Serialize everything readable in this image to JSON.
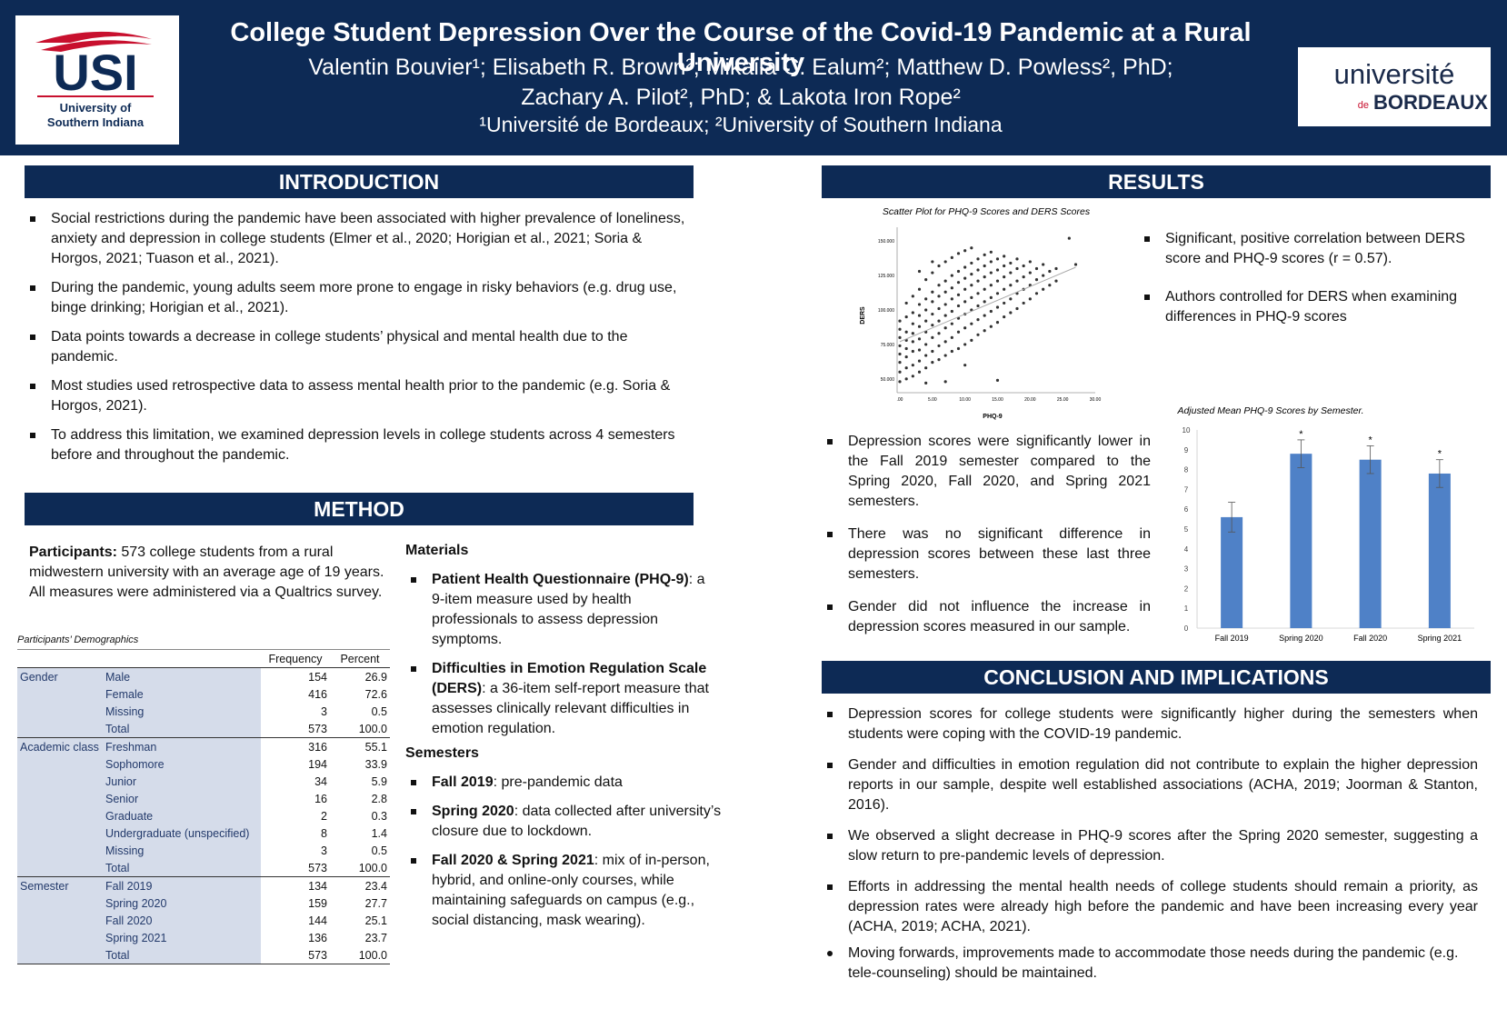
{
  "header": {
    "title": "College Student Depression Over the Course of the Covid-19 Pandemic at a Rural University",
    "authors_line1": "Valentin Bouvier¹; Elisabeth R. Brown²; Mikaila C. Ealum²; Matthew D. Powless², PhD;",
    "authors_line2": "Zachary A. Pilot², PhD; & Lakota Iron Rope²",
    "affiliations": "¹Université de Bordeaux; ²University of Southern Indiana",
    "usi_logo_text": "USI",
    "usi_logo_sub1": "University of",
    "usi_logo_sub2": "Southern Indiana",
    "ub_logo_line1": "université",
    "ub_logo_de": "de",
    "ub_logo_line2": "BORDEAUX"
  },
  "introduction": {
    "heading": "INTRODUCTION",
    "bullets": [
      "Social restrictions during the pandemic have been associated with higher prevalence of loneliness, anxiety and depression in college students (Elmer et al., 2020; Horigian et al., 2021; Soria & Horgos, 2021; Tuason et al., 2021).",
      "During the pandemic, young adults seem more prone to engage in risky behaviors (e.g. drug use, binge drinking; Horigian et al., 2021).",
      "Data points towards a decrease in college students’ physical and mental health due to the pandemic.",
      "Most studies used retrospective data to assess mental health prior to the pandemic (e.g. Soria & Horgos, 2021).",
      "To address this limitation, we examined depression levels in college students across 4 semesters before and throughout the pandemic."
    ]
  },
  "method": {
    "heading": "METHOD",
    "participants_label": "Participants:",
    "participants_text": " 573 college students from a rural midwestern university with an average age of 19 years. All measures were administered via a Qualtrics survey.",
    "table_caption": "Participants’ Demographics",
    "table_headers": [
      "",
      "",
      "Frequency",
      "Percent"
    ],
    "table_groups": [
      {
        "group": "Gender",
        "rows": [
          [
            "Male",
            "154",
            "26.9"
          ],
          [
            "Female",
            "416",
            "72.6"
          ],
          [
            "Missing",
            "3",
            "0.5"
          ],
          [
            "Total",
            "573",
            "100.0"
          ]
        ]
      },
      {
        "group": "Academic class",
        "rows": [
          [
            "Freshman",
            "316",
            "55.1"
          ],
          [
            "Sophomore",
            "194",
            "33.9"
          ],
          [
            "Junior",
            "34",
            "5.9"
          ],
          [
            "Senior",
            "16",
            "2.8"
          ],
          [
            "Graduate",
            "2",
            "0.3"
          ],
          [
            "Undergraduate (unspecified)",
            "8",
            "1.4"
          ],
          [
            "Missing",
            "3",
            "0.5"
          ],
          [
            "Total",
            "573",
            "100.0"
          ]
        ]
      },
      {
        "group": "Semester",
        "rows": [
          [
            "Fall 2019",
            "134",
            "23.4"
          ],
          [
            "Spring 2020",
            "159",
            "27.7"
          ],
          [
            "Fall 2020",
            "144",
            "25.1"
          ],
          [
            "Spring 2021",
            "136",
            "23.7"
          ],
          [
            "Total",
            "573",
            "100.0"
          ]
        ]
      }
    ],
    "materials_heading": "Materials",
    "materials": [
      {
        "bold": "Patient Health Questionnaire (PHQ-9)",
        "text": ": a 9-item measure used by health professionals to assess depression symptoms."
      },
      {
        "bold": "Difficulties in Emotion Regulation Scale (DERS)",
        "text": ": a 36-item self-report measure that assesses clinically relevant difficulties in emotion regulation."
      }
    ],
    "semesters_heading": "Semesters",
    "semesters": [
      {
        "bold": "Fall 2019",
        "text": ": pre-pandemic data"
      },
      {
        "bold": "Spring 2020",
        "text": ": data collected after university’s closure due to lockdown."
      },
      {
        "bold": "Fall 2020 & Spring 2021",
        "text": ": mix of in-person, hybrid, and online-only courses, while maintaining safeguards on campus (e.g., social distancing, mask wearing)."
      }
    ]
  },
  "results": {
    "heading": "RESULTS",
    "scatter_bullets": [
      "Significant, positive correlation between DERS score and PHQ-9 scores (r = 0.57).",
      "Authors controlled for DERS when examining differences in PHQ-9 scores"
    ],
    "bar_bullets": [
      "Depression scores were significantly lower in the Fall 2019 semester compared to the Spring 2020, Fall 2020, and Spring 2021 semesters.",
      "There was no significant difference in depression scores between these last three semesters.",
      "Gender did not influence the increase in depression scores measured in our sample."
    ]
  },
  "conclusion": {
    "heading": "CONCLUSION AND IMPLICATIONS",
    "bullets": [
      "Depression scores for college students were significantly higher during the semesters when students were coping with the COVID-19 pandemic.",
      "Gender and difficulties in emotion regulation did not contribute to explain the higher depression reports in our sample, despite well established associations (ACHA, 2019; Joorman & Stanton, 2016).",
      "We observed a slight decrease in PHQ-9 scores after the Spring 2020 semester, suggesting a slow return to pre-pandemic levels of depression.",
      "Efforts in addressing the mental health needs of college students should remain a priority, as depression rates were already high before the pandemic and have been increasing every year (ACHA, 2019; ACHA, 2021).",
      "Moving forwards, improvements made to accommodate those needs during the pandemic (e.g. tele-counseling) should be maintained."
    ]
  },
  "colors": {
    "navy": "#0d2a55",
    "bar": "#4f81c7",
    "usi_red": "#c8102e"
  },
  "chart_data": [
    {
      "type": "scatter",
      "title": "Scatter Plot for PHQ-9 Scores and DERS Scores",
      "xlabel": "PHQ-9",
      "ylabel": "DERS",
      "x_ticks": [
        ".00",
        "5.00",
        "10.00",
        "15.00",
        "20.00",
        "25.00",
        "30.00"
      ],
      "y_ticks": [
        "50.000",
        "75.000",
        "100.000",
        "125.000",
        "150.000"
      ],
      "xlim": [
        0,
        30
      ],
      "ylim": [
        40,
        160
      ],
      "fit_line": [
        [
          0,
          77
        ],
        [
          27,
          131
        ]
      ],
      "points": [
        [
          0,
          48
        ],
        [
          0,
          55
        ],
        [
          0,
          62
        ],
        [
          0,
          68
        ],
        [
          0,
          74
        ],
        [
          0,
          80
        ],
        [
          0,
          86
        ],
        [
          0,
          92
        ],
        [
          1,
          50
        ],
        [
          1,
          58
        ],
        [
          1,
          66
        ],
        [
          1,
          72
        ],
        [
          1,
          78
        ],
        [
          1,
          84
        ],
        [
          1,
          95
        ],
        [
          1,
          105
        ],
        [
          2,
          52
        ],
        [
          2,
          60
        ],
        [
          2,
          70
        ],
        [
          2,
          77
        ],
        [
          2,
          83
        ],
        [
          2,
          90
        ],
        [
          2,
          98
        ],
        [
          2,
          110
        ],
        [
          3,
          55
        ],
        [
          3,
          63
        ],
        [
          3,
          71
        ],
        [
          3,
          79
        ],
        [
          3,
          88
        ],
        [
          3,
          96
        ],
        [
          3,
          104
        ],
        [
          3,
          115
        ],
        [
          4,
          58
        ],
        [
          4,
          67
        ],
        [
          4,
          75
        ],
        [
          4,
          84
        ],
        [
          4,
          92
        ],
        [
          4,
          100
        ],
        [
          4,
          108
        ],
        [
          4,
          122
        ],
        [
          5,
          62
        ],
        [
          5,
          70
        ],
        [
          5,
          80
        ],
        [
          5,
          89
        ],
        [
          5,
          97
        ],
        [
          5,
          106
        ],
        [
          5,
          113
        ],
        [
          5,
          127
        ],
        [
          6,
          64
        ],
        [
          6,
          74
        ],
        [
          6,
          83
        ],
        [
          6,
          92
        ],
        [
          6,
          101
        ],
        [
          6,
          110
        ],
        [
          6,
          118
        ],
        [
          6,
          132
        ],
        [
          7,
          67
        ],
        [
          7,
          77
        ],
        [
          7,
          87
        ],
        [
          7,
          96
        ],
        [
          7,
          104
        ],
        [
          7,
          113
        ],
        [
          7,
          121
        ],
        [
          7,
          135
        ],
        [
          8,
          70
        ],
        [
          8,
          80
        ],
        [
          8,
          90
        ],
        [
          8,
          99
        ],
        [
          8,
          108
        ],
        [
          8,
          116
        ],
        [
          8,
          125
        ],
        [
          8,
          138
        ],
        [
          9,
          72
        ],
        [
          9,
          84
        ],
        [
          9,
          94
        ],
        [
          9,
          103
        ],
        [
          9,
          111
        ],
        [
          9,
          120
        ],
        [
          9,
          128
        ],
        [
          9,
          141
        ],
        [
          10,
          75
        ],
        [
          10,
          87
        ],
        [
          10,
          97
        ],
        [
          10,
          106
        ],
        [
          10,
          115
        ],
        [
          10,
          123
        ],
        [
          10,
          131
        ],
        [
          10,
          143
        ],
        [
          11,
          78
        ],
        [
          11,
          90
        ],
        [
          11,
          100
        ],
        [
          11,
          109
        ],
        [
          11,
          118
        ],
        [
          11,
          126
        ],
        [
          11,
          134
        ],
        [
          11,
          145
        ],
        [
          12,
          82
        ],
        [
          12,
          93
        ],
        [
          12,
          103
        ],
        [
          12,
          112
        ],
        [
          12,
          121
        ],
        [
          12,
          129
        ],
        [
          12,
          137
        ],
        [
          13,
          85
        ],
        [
          13,
          96
        ],
        [
          13,
          106
        ],
        [
          13,
          115
        ],
        [
          13,
          124
        ],
        [
          13,
          132
        ],
        [
          13,
          140
        ],
        [
          14,
          88
        ],
        [
          14,
          99
        ],
        [
          14,
          109
        ],
        [
          14,
          118
        ],
        [
          14,
          127
        ],
        [
          14,
          135
        ],
        [
          14,
          142
        ],
        [
          15,
          91
        ],
        [
          15,
          102
        ],
        [
          15,
          112
        ],
        [
          15,
          121
        ],
        [
          15,
          129
        ],
        [
          15,
          137
        ],
        [
          16,
          95
        ],
        [
          16,
          105
        ],
        [
          16,
          115
        ],
        [
          16,
          124
        ],
        [
          16,
          132
        ],
        [
          16,
          139
        ],
        [
          17,
          98
        ],
        [
          17,
          108
        ],
        [
          17,
          118
        ],
        [
          17,
          127
        ],
        [
          17,
          134
        ],
        [
          18,
          101
        ],
        [
          18,
          112
        ],
        [
          18,
          121
        ],
        [
          18,
          130
        ],
        [
          18,
          137
        ],
        [
          19,
          105
        ],
        [
          19,
          115
        ],
        [
          19,
          124
        ],
        [
          19,
          132
        ],
        [
          20,
          108
        ],
        [
          20,
          118
        ],
        [
          20,
          127
        ],
        [
          20,
          135
        ],
        [
          21,
          112
        ],
        [
          21,
          122
        ],
        [
          21,
          130
        ],
        [
          22,
          115
        ],
        [
          22,
          125
        ],
        [
          22,
          133
        ],
        [
          23,
          118
        ],
        [
          23,
          128
        ],
        [
          24,
          121
        ],
        [
          24,
          130
        ],
        [
          26,
          152
        ],
        [
          27,
          133
        ],
        [
          7,
          48
        ],
        [
          4,
          47
        ],
        [
          15,
          49
        ],
        [
          10,
          60
        ],
        [
          5,
          135
        ],
        [
          3,
          128
        ]
      ]
    },
    {
      "type": "bar",
      "title": "Adjusted Mean PHQ-9 Scores by Semester.",
      "categories": [
        "Fall 2019",
        "Spring 2020",
        "Fall 2020",
        "Spring 2021"
      ],
      "values": [
        5.6,
        8.8,
        8.5,
        7.8
      ],
      "error": [
        0.75,
        0.7,
        0.7,
        0.7
      ],
      "significance": [
        "",
        "*",
        "*",
        "*"
      ],
      "ylim": [
        0,
        10
      ],
      "y_ticks": [
        0,
        1,
        2,
        3,
        4,
        5,
        6,
        7,
        8,
        9,
        10
      ]
    }
  ]
}
